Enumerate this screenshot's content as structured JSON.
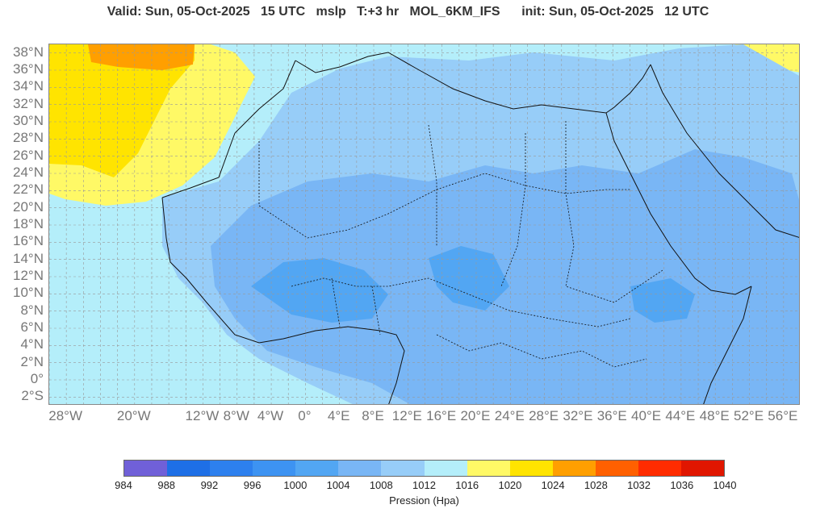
{
  "title": "Valid: Sun, 05-Oct-2025   15 UTC   mslp   T:+3 hr   MOL_6KM_IFS      init: Sun, 05-Oct-2025   12 UTC",
  "map": {
    "lon_range": [
      -30,
      58
    ],
    "lat_range": [
      -3,
      39
    ],
    "grid": true,
    "background_field": "mslp"
  },
  "lat_labels": [
    "38°N",
    "36°N",
    "34°N",
    "32°N",
    "30°N",
    "28°N",
    "26°N",
    "24°N",
    "22°N",
    "20°N",
    "18°N",
    "16°N",
    "14°N",
    "12°N",
    "10°N",
    "8°N",
    "6°N",
    "4°N",
    "2°N",
    "0°",
    "2°S"
  ],
  "lat_values": [
    38,
    36,
    34,
    32,
    30,
    28,
    26,
    24,
    22,
    20,
    18,
    16,
    14,
    12,
    10,
    8,
    6,
    4,
    2,
    0,
    -2
  ],
  "lon_labels": [
    "28°W",
    "20°W",
    "12°W",
    "8°W",
    "4°W",
    "0°",
    "4°E",
    "8°E",
    "12°E",
    "16°E",
    "20°E",
    "24°E",
    "28°E",
    "32°E",
    "36°E",
    "40°E",
    "44°E",
    "48°E",
    "52°E",
    "56°E"
  ],
  "lon_values": [
    -28,
    -20,
    -12,
    -8,
    -4,
    0,
    4,
    8,
    12,
    16,
    20,
    24,
    28,
    32,
    36,
    40,
    44,
    48,
    52,
    56
  ],
  "colorbar": {
    "title": "Pression (Hpa)",
    "ticks": [
      "984",
      "988",
      "992",
      "996",
      "1000",
      "1004",
      "1008",
      "1012",
      "1016",
      "1020",
      "1024",
      "1028",
      "1032",
      "1036",
      "1040"
    ],
    "colors": [
      "#7060d8",
      "#1e6fe6",
      "#2d80ee",
      "#3d93f2",
      "#52a6f3",
      "#79b6f5",
      "#97cdf8",
      "#b4eefa",
      "#fff966",
      "#ffe400",
      "#ff9f00",
      "#ff6000",
      "#ff2c00",
      "#e01600"
    ]
  }
}
